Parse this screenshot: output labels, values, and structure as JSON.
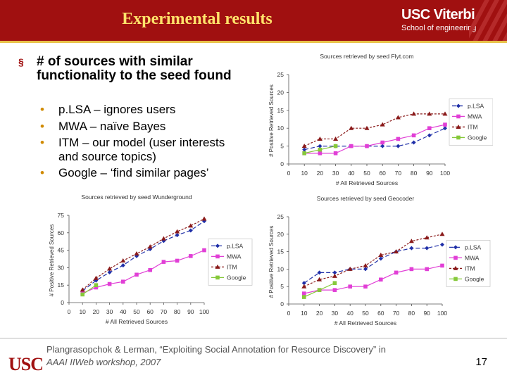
{
  "slide": {
    "title": "Experimental results",
    "logo_line1": "USC Viterbi",
    "logo_line2": "School of engineering",
    "bullet": "# of sources with similar functionality to the seed found",
    "bullet_marker": "§",
    "sub_bullets": [
      "p.LSA – ignores users",
      "MWA – naïve Bayes",
      "ITM – our model (user interests and source topics)",
      "Google – ‘find similar pages’"
    ],
    "citation_line1": "Plangrasopchok & Lerman, “Exploiting Social Annotation for Resource Discovery” in",
    "citation_line2": "AAAI IIWeb workshop, 2007",
    "footer_logo": "USC",
    "page_number": "17"
  },
  "series_styles": {
    "p.LSA": {
      "color": "#1f2fa8",
      "marker": "diamond",
      "dash": "6,3"
    },
    "MWA": {
      "color": "#e13fd6",
      "marker": "square",
      "dash": ""
    },
    "ITM": {
      "color": "#8a1a1a",
      "marker": "triangle",
      "dash": "3,2"
    },
    "Google": {
      "color": "#86c93a",
      "marker": "square",
      "dash": ""
    }
  },
  "chart_data": [
    {
      "type": "line",
      "title": "Sources retrieved by seed Flyt.com",
      "xlabel": "# All Retrieved Sources",
      "ylabel": "# Positive Retrieved Sources",
      "x": [
        10,
        20,
        30,
        40,
        50,
        60,
        70,
        80,
        90,
        100
      ],
      "xticks": [
        0,
        10,
        20,
        30,
        40,
        50,
        60,
        70,
        80,
        90,
        100
      ],
      "ylim": [
        0,
        25
      ],
      "yticks": [
        0,
        5,
        10,
        15,
        20,
        25
      ],
      "legend": "right",
      "series": [
        {
          "name": "p.LSA",
          "values": [
            4,
            5,
            5,
            5,
            5,
            5,
            5,
            6,
            8,
            10
          ]
        },
        {
          "name": "MWA",
          "values": [
            3,
            3,
            3,
            5,
            5,
            6,
            7,
            8,
            10,
            11
          ]
        },
        {
          "name": "ITM",
          "values": [
            5,
            7,
            7,
            10,
            10,
            11,
            13,
            14,
            14,
            14
          ]
        },
        {
          "name": "Google",
          "values": [
            3,
            4,
            5,
            null,
            null,
            null,
            null,
            null,
            null,
            null
          ]
        }
      ]
    },
    {
      "type": "line",
      "title": "Sources retrieved by seed Wunderground",
      "xlabel": "# All Retrieved Sources",
      "ylabel": "# Positive Retrieved Sources",
      "x": [
        10,
        20,
        30,
        40,
        50,
        60,
        70,
        80,
        90,
        100
      ],
      "xticks": [
        0,
        10,
        20,
        30,
        40,
        50,
        60,
        70,
        80,
        90,
        100
      ],
      "ylim": [
        0,
        75
      ],
      "yticks": [
        0,
        15,
        30,
        45,
        60,
        75
      ],
      "legend": "right",
      "series": [
        {
          "name": "p.LSA",
          "values": [
            10,
            19,
            26,
            32,
            40,
            46,
            53,
            58,
            62,
            70
          ]
        },
        {
          "name": "MWA",
          "values": [
            8,
            13,
            16,
            18,
            24,
            28,
            35,
            36,
            40,
            45
          ]
        },
        {
          "name": "ITM",
          "values": [
            11,
            21,
            29,
            36,
            42,
            48,
            55,
            61,
            66,
            72
          ]
        },
        {
          "name": "Google",
          "values": [
            7,
            15,
            null,
            null,
            null,
            null,
            null,
            null,
            null,
            null
          ]
        }
      ]
    },
    {
      "type": "line",
      "title": "Sources retrieved by seed Geocoder",
      "xlabel": "# All Retrieved Sources",
      "ylabel": "# Positive Retrieved Sources",
      "x": [
        10,
        20,
        30,
        40,
        50,
        60,
        70,
        80,
        90,
        100
      ],
      "xticks": [
        0,
        10,
        20,
        30,
        40,
        50,
        60,
        70,
        80,
        90,
        100
      ],
      "ylim": [
        0,
        25
      ],
      "yticks": [
        0,
        5,
        10,
        15,
        20,
        25
      ],
      "legend": "right",
      "series": [
        {
          "name": "p.LSA",
          "values": [
            6,
            9,
            9,
            10,
            10,
            13,
            15,
            16,
            16,
            17
          ]
        },
        {
          "name": "MWA",
          "values": [
            3,
            4,
            4,
            5,
            5,
            7,
            9,
            10,
            10,
            11
          ]
        },
        {
          "name": "ITM",
          "values": [
            5,
            7,
            8,
            10,
            11,
            14,
            15,
            18,
            19,
            20
          ]
        },
        {
          "name": "Google",
          "values": [
            2,
            4,
            6,
            null,
            null,
            null,
            null,
            null,
            null,
            null
          ]
        }
      ]
    }
  ]
}
